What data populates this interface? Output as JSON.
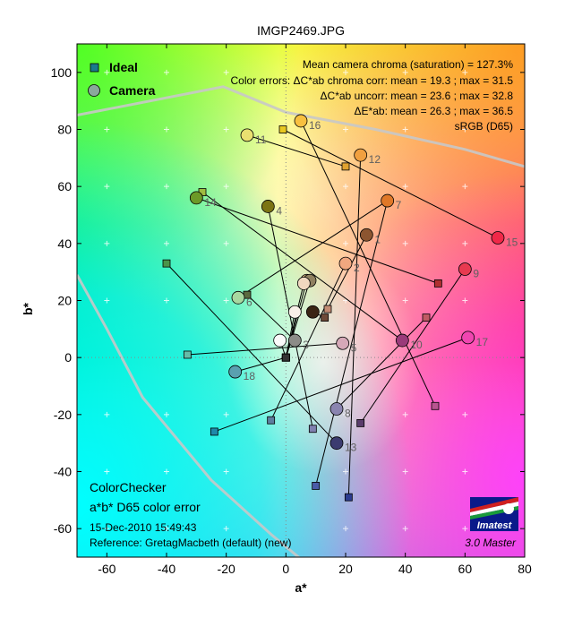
{
  "chart_data": {
    "type": "scatter",
    "title": "IMGP2469.JPG",
    "xlabel": "a*",
    "ylabel": "b*",
    "xlim": [
      -70,
      80
    ],
    "ylim": [
      -70,
      110
    ],
    "xticks": [
      -60,
      -40,
      -20,
      0,
      20,
      40,
      60,
      80
    ],
    "yticks": [
      -60,
      -40,
      -20,
      0,
      20,
      40,
      60,
      80,
      100
    ],
    "grid": "minor crosses, dotted zero axes",
    "legend": {
      "position": "top-left",
      "ideal": "Ideal",
      "camera": "Camera"
    },
    "stats": [
      "Mean camera chroma (saturation) = 127.3%",
      "Color errors:  ΔC*ab chroma corr:  mean = 19.3 ;  max = 31.5",
      "ΔC*ab uncorr:  mean = 23.6 ;  max = 32.8",
      "ΔE*ab:  mean = 26.3 ;  max = 36.5",
      "sRGB (D65)"
    ],
    "footer": {
      "heading1": "ColorChecker",
      "heading2": "a*b* D65 color error",
      "date": "15-Dec-2010 15:49:43",
      "reference": "Reference: GretagMacbeth (default) (new)",
      "version": "3.0  Master",
      "logo_text": "Imatest"
    },
    "series": [
      {
        "name": "Ideal",
        "marker": "square"
      },
      {
        "name": "Camera",
        "marker": "circle"
      }
    ],
    "patches": [
      {
        "label": "",
        "ideal": [
          13,
          14
        ],
        "camera": [
          9,
          16
        ],
        "color": "#6e4a38",
        "cam_color": "#3a2414"
      },
      {
        "label": "1",
        "ideal": [
          14,
          17
        ],
        "camera": [
          27,
          43
        ],
        "color": "#c48c74",
        "cam_color": "#8c5530"
      },
      {
        "label": "2",
        "ideal": [
          -5,
          -22
        ],
        "camera": [
          20,
          33
        ],
        "color": "#5e7ea0",
        "cam_color": "#f1a77f"
      },
      {
        "label": "3",
        "ideal": [
          -13,
          22
        ],
        "camera": [
          3,
          6
        ],
        "color": "#5a6a40",
        "cam_color": "#8c8c88"
      },
      {
        "label": "4",
        "ideal": [
          9,
          -25
        ],
        "camera": [
          -6,
          53
        ],
        "color": "#8080b0",
        "cam_color": "#7c7414"
      },
      {
        "label": "5",
        "ideal": [
          -33,
          1
        ],
        "camera": [
          19,
          5
        ],
        "color": "#66bca8",
        "cam_color": "#d6a8b8"
      },
      {
        "label": "6",
        "ideal": [
          34,
          55
        ],
        "camera": [
          -16,
          21
        ],
        "color": "#e0882e",
        "cam_color": "#a8d8a0"
      },
      {
        "label": "7",
        "ideal": [
          10,
          -45
        ],
        "camera": [
          34,
          55
        ],
        "color": "#4a5ca8",
        "cam_color": "#e07828"
      },
      {
        "label": "8",
        "ideal": [
          47,
          14
        ],
        "camera": [
          17,
          -18
        ],
        "color": "#c05a64",
        "cam_color": "#8a84b0"
      },
      {
        "label": "9",
        "ideal": [
          25,
          -23
        ],
        "camera": [
          60,
          31
        ],
        "color": "#5a3c6c",
        "cam_color": "#e83a50"
      },
      {
        "label": "10",
        "ideal": [
          -28,
          58
        ],
        "camera": [
          39,
          6
        ],
        "color": "#a0bc40",
        "cam_color": "#9a3a7a"
      },
      {
        "label": "11",
        "ideal": [
          20,
          67
        ],
        "camera": [
          -13,
          78
        ],
        "color": "#e0a230",
        "cam_color": "#eae070"
      },
      {
        "label": "12",
        "ideal": [
          21,
          -49
        ],
        "camera": [
          25,
          71
        ],
        "color": "#2c3c90",
        "cam_color": "#f0a040"
      },
      {
        "label": "13",
        "ideal": [
          -40,
          33
        ],
        "camera": [
          17,
          -30
        ],
        "color": "#4a944a",
        "cam_color": "#3c3c70"
      },
      {
        "label": "14",
        "ideal": [
          51,
          26
        ],
        "camera": [
          -30,
          56
        ],
        "color": "#b03030",
        "cam_color": "#6c9a28"
      },
      {
        "label": "15",
        "ideal": [
          -1,
          80
        ],
        "camera": [
          71,
          42
        ],
        "color": "#e8c820",
        "cam_color": "#f02848"
      },
      {
        "label": "16",
        "ideal": [
          50,
          -17
        ],
        "camera": [
          5,
          83
        ],
        "color": "#b85490",
        "cam_color": "#f8c040"
      },
      {
        "label": "17",
        "ideal": [
          -24,
          -26
        ],
        "camera": [
          61,
          7
        ],
        "color": "#1e8aaa",
        "cam_color": "#f045b0"
      },
      {
        "label": "18",
        "ideal": [
          0,
          0
        ],
        "camera": [
          -17,
          -5
        ],
        "color": "#f2f2f2",
        "cam_color": "#5aa0b0"
      },
      {
        "label": "",
        "ideal": [
          0,
          0
        ],
        "camera": [
          -2,
          6
        ],
        "color": "#c8c8c8",
        "cam_color": "#fafafa"
      },
      {
        "label": "",
        "ideal": [
          0,
          0
        ],
        "camera": [
          7,
          27
        ],
        "color": "#a0a0a0",
        "cam_color": "#c8a878"
      },
      {
        "label": "",
        "ideal": [
          0,
          0
        ],
        "camera": [
          8,
          27
        ],
        "color": "#7a7a7a",
        "cam_color": "#908060"
      },
      {
        "label": "",
        "ideal": [
          0,
          0
        ],
        "camera": [
          6,
          26
        ],
        "color": "#555555",
        "cam_color": "#f0d8c0"
      },
      {
        "label": "",
        "ideal": [
          0,
          0
        ],
        "camera": [
          3,
          16
        ],
        "color": "#343434",
        "cam_color": "#f8f0e8"
      }
    ],
    "gamut": [
      [
        [
          -70,
          85
        ],
        [
          -21,
          95
        ],
        [
          0,
          86
        ],
        [
          30,
          80
        ],
        [
          60,
          73
        ],
        [
          80,
          67
        ]
      ],
      [
        [
          -70,
          29
        ],
        [
          -60,
          10
        ],
        [
          -48,
          -14
        ],
        [
          -25,
          -43
        ],
        [
          -5,
          -62
        ],
        [
          10,
          -75
        ]
      ]
    ]
  }
}
